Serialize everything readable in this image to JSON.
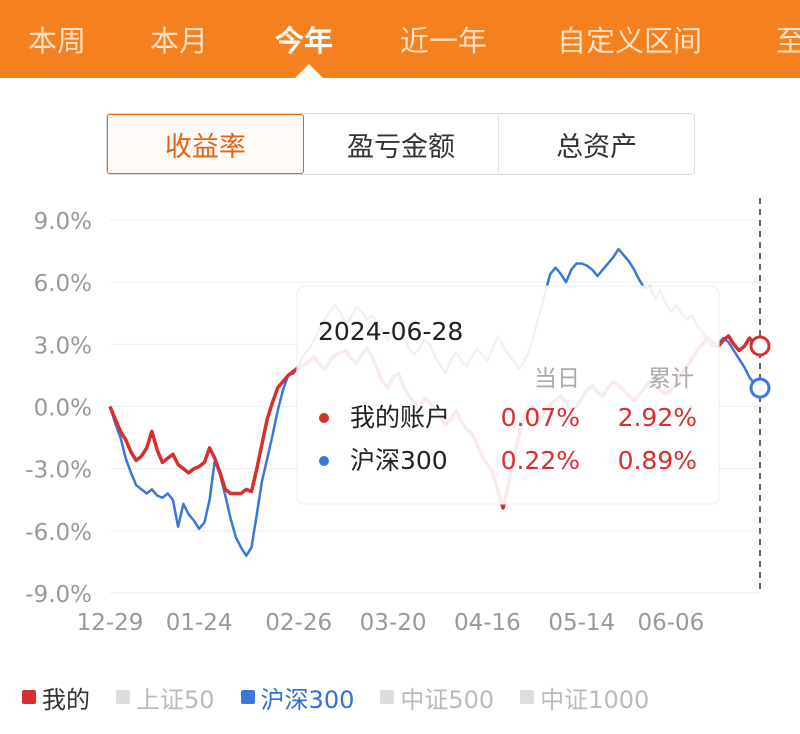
{
  "tabs": [
    {
      "label": "本周",
      "active": false
    },
    {
      "label": "本月",
      "active": false
    },
    {
      "label": "今年",
      "active": true
    },
    {
      "label": "近一年",
      "active": false
    },
    {
      "label": "自定义区间",
      "active": false
    },
    {
      "label": "至",
      "active": false
    }
  ],
  "segments": [
    {
      "label": "收益率",
      "active": true
    },
    {
      "label": "盈亏金额",
      "active": false
    },
    {
      "label": "总资产",
      "active": false
    }
  ],
  "tooltip": {
    "date": "2024-06-28",
    "col_day": "当日",
    "col_total": "累计",
    "rows": [
      {
        "name": "我的账户",
        "day": "0.07%",
        "total": "2.92%",
        "color": "#d62f2f"
      },
      {
        "name": "沪深300",
        "day": "0.22%",
        "total": "0.89%",
        "color": "#3a78d8"
      }
    ]
  },
  "legend": [
    {
      "label": "我的",
      "state": "red"
    },
    {
      "label": "上证50",
      "state": "off"
    },
    {
      "label": "沪深300",
      "state": "blue"
    },
    {
      "label": "中证500",
      "state": "off"
    },
    {
      "label": "中证1000",
      "state": "off"
    }
  ],
  "chart_data": {
    "type": "line",
    "y_ticks": [
      "9.0%",
      "6.0%",
      "3.0%",
      "0.0%",
      "-3.0%",
      "-6.0%",
      "-9.0%"
    ],
    "ylim": [
      -9,
      9
    ],
    "x_ticks": [
      {
        "label": "12-29",
        "index": 0
      },
      {
        "label": "01-24",
        "index": 17
      },
      {
        "label": "02-26",
        "index": 36
      },
      {
        "label": "03-20",
        "index": 54
      },
      {
        "label": "04-16",
        "index": 72
      },
      {
        "label": "05-14",
        "index": 90
      },
      {
        "label": "06-06",
        "index": 107
      },
      {
        "label": "2024-06-28",
        "index": 124,
        "hidden": true
      }
    ],
    "colors": {
      "mine": "#d62f2f",
      "hs300": "#3a78d8",
      "grid": "#eeeeee"
    },
    "series": [
      {
        "key": "mine",
        "values": [
          0.0,
          -0.6,
          -1.2,
          -1.6,
          -2.2,
          -2.6,
          -2.4,
          -2.0,
          -1.2,
          -2.1,
          -2.7,
          -2.5,
          -2.3,
          -2.8,
          -3.0,
          -3.2,
          -3.0,
          -2.9,
          -2.7,
          -2.0,
          -2.5,
          -3.2,
          -4.0,
          -4.2,
          -4.2,
          -4.2,
          -4.0,
          -4.1,
          -3.0,
          -1.8,
          -0.6,
          0.2,
          0.9,
          1.2,
          1.5,
          1.7,
          1.9,
          2.0,
          2.2,
          2.4,
          2.0,
          1.8,
          2.2,
          2.5,
          2.6,
          2.7,
          2.3,
          2.1,
          2.5,
          2.8,
          2.4,
          1.8,
          1.2,
          0.9,
          1.4,
          1.6,
          1.0,
          0.5,
          0.2,
          -0.1,
          0.4,
          0.2,
          -0.2,
          -0.5,
          -0.9,
          -0.6,
          -0.2,
          -0.7,
          -1.1,
          -1.3,
          -1.8,
          -2.4,
          -2.8,
          -3.2,
          -4.1,
          -4.9,
          -3.8,
          -2.5,
          -1.4,
          -0.5,
          0.0,
          -0.3,
          -0.6,
          -0.2,
          0.1,
          0.3,
          0.5,
          0.2,
          -0.2,
          0.0,
          0.4,
          0.8,
          1.0,
          0.7,
          0.5,
          0.9,
          1.2,
          1.0,
          0.8,
          0.5,
          0.3,
          0.6,
          0.9,
          1.2,
          1.0,
          0.8,
          0.6,
          0.8,
          1.1,
          1.6,
          1.9,
          2.3,
          2.7,
          3.0,
          3.3,
          3.1,
          2.9,
          3.2,
          3.4,
          3.0,
          2.7,
          2.9,
          3.3,
          3.0,
          2.92
        ]
      },
      {
        "key": "hs300",
        "values": [
          0.0,
          -0.8,
          -1.5,
          -2.5,
          -3.2,
          -3.8,
          -4.0,
          -4.2,
          -4.0,
          -4.3,
          -4.4,
          -4.2,
          -4.5,
          -5.8,
          -4.7,
          -5.2,
          -5.5,
          -5.9,
          -5.6,
          -4.5,
          -2.6,
          -3.3,
          -4.3,
          -5.4,
          -6.3,
          -6.8,
          -7.2,
          -6.8,
          -5.2,
          -3.6,
          -2.5,
          -1.4,
          -0.2,
          0.8,
          1.5,
          1.6,
          2.0,
          2.5,
          2.8,
          3.2,
          3.8,
          4.2,
          4.6,
          4.9,
          4.5,
          4.0,
          4.3,
          4.8,
          4.6,
          4.2,
          4.4,
          4.0,
          3.6,
          3.2,
          3.7,
          4.0,
          3.3,
          2.8,
          2.5,
          2.8,
          3.2,
          3.0,
          2.4,
          2.0,
          1.6,
          2.2,
          2.6,
          2.2,
          1.9,
          2.4,
          2.8,
          2.5,
          2.2,
          2.8,
          3.4,
          2.9,
          2.5,
          2.2,
          1.8,
          2.2,
          2.7,
          3.6,
          4.5,
          5.5,
          6.4,
          6.7,
          6.4,
          6.0,
          6.6,
          6.9,
          6.9,
          6.8,
          6.6,
          6.3,
          6.6,
          6.9,
          7.2,
          7.6,
          7.3,
          7.0,
          6.6,
          6.1,
          5.7,
          5.8,
          5.2,
          5.6,
          5.0,
          4.6,
          4.9,
          4.5,
          4.2,
          4.4,
          3.9,
          3.6,
          3.2,
          2.9,
          3.0,
          3.3,
          3.1,
          2.7,
          2.3,
          1.9,
          1.4,
          1.1,
          0.89
        ]
      }
    ]
  }
}
